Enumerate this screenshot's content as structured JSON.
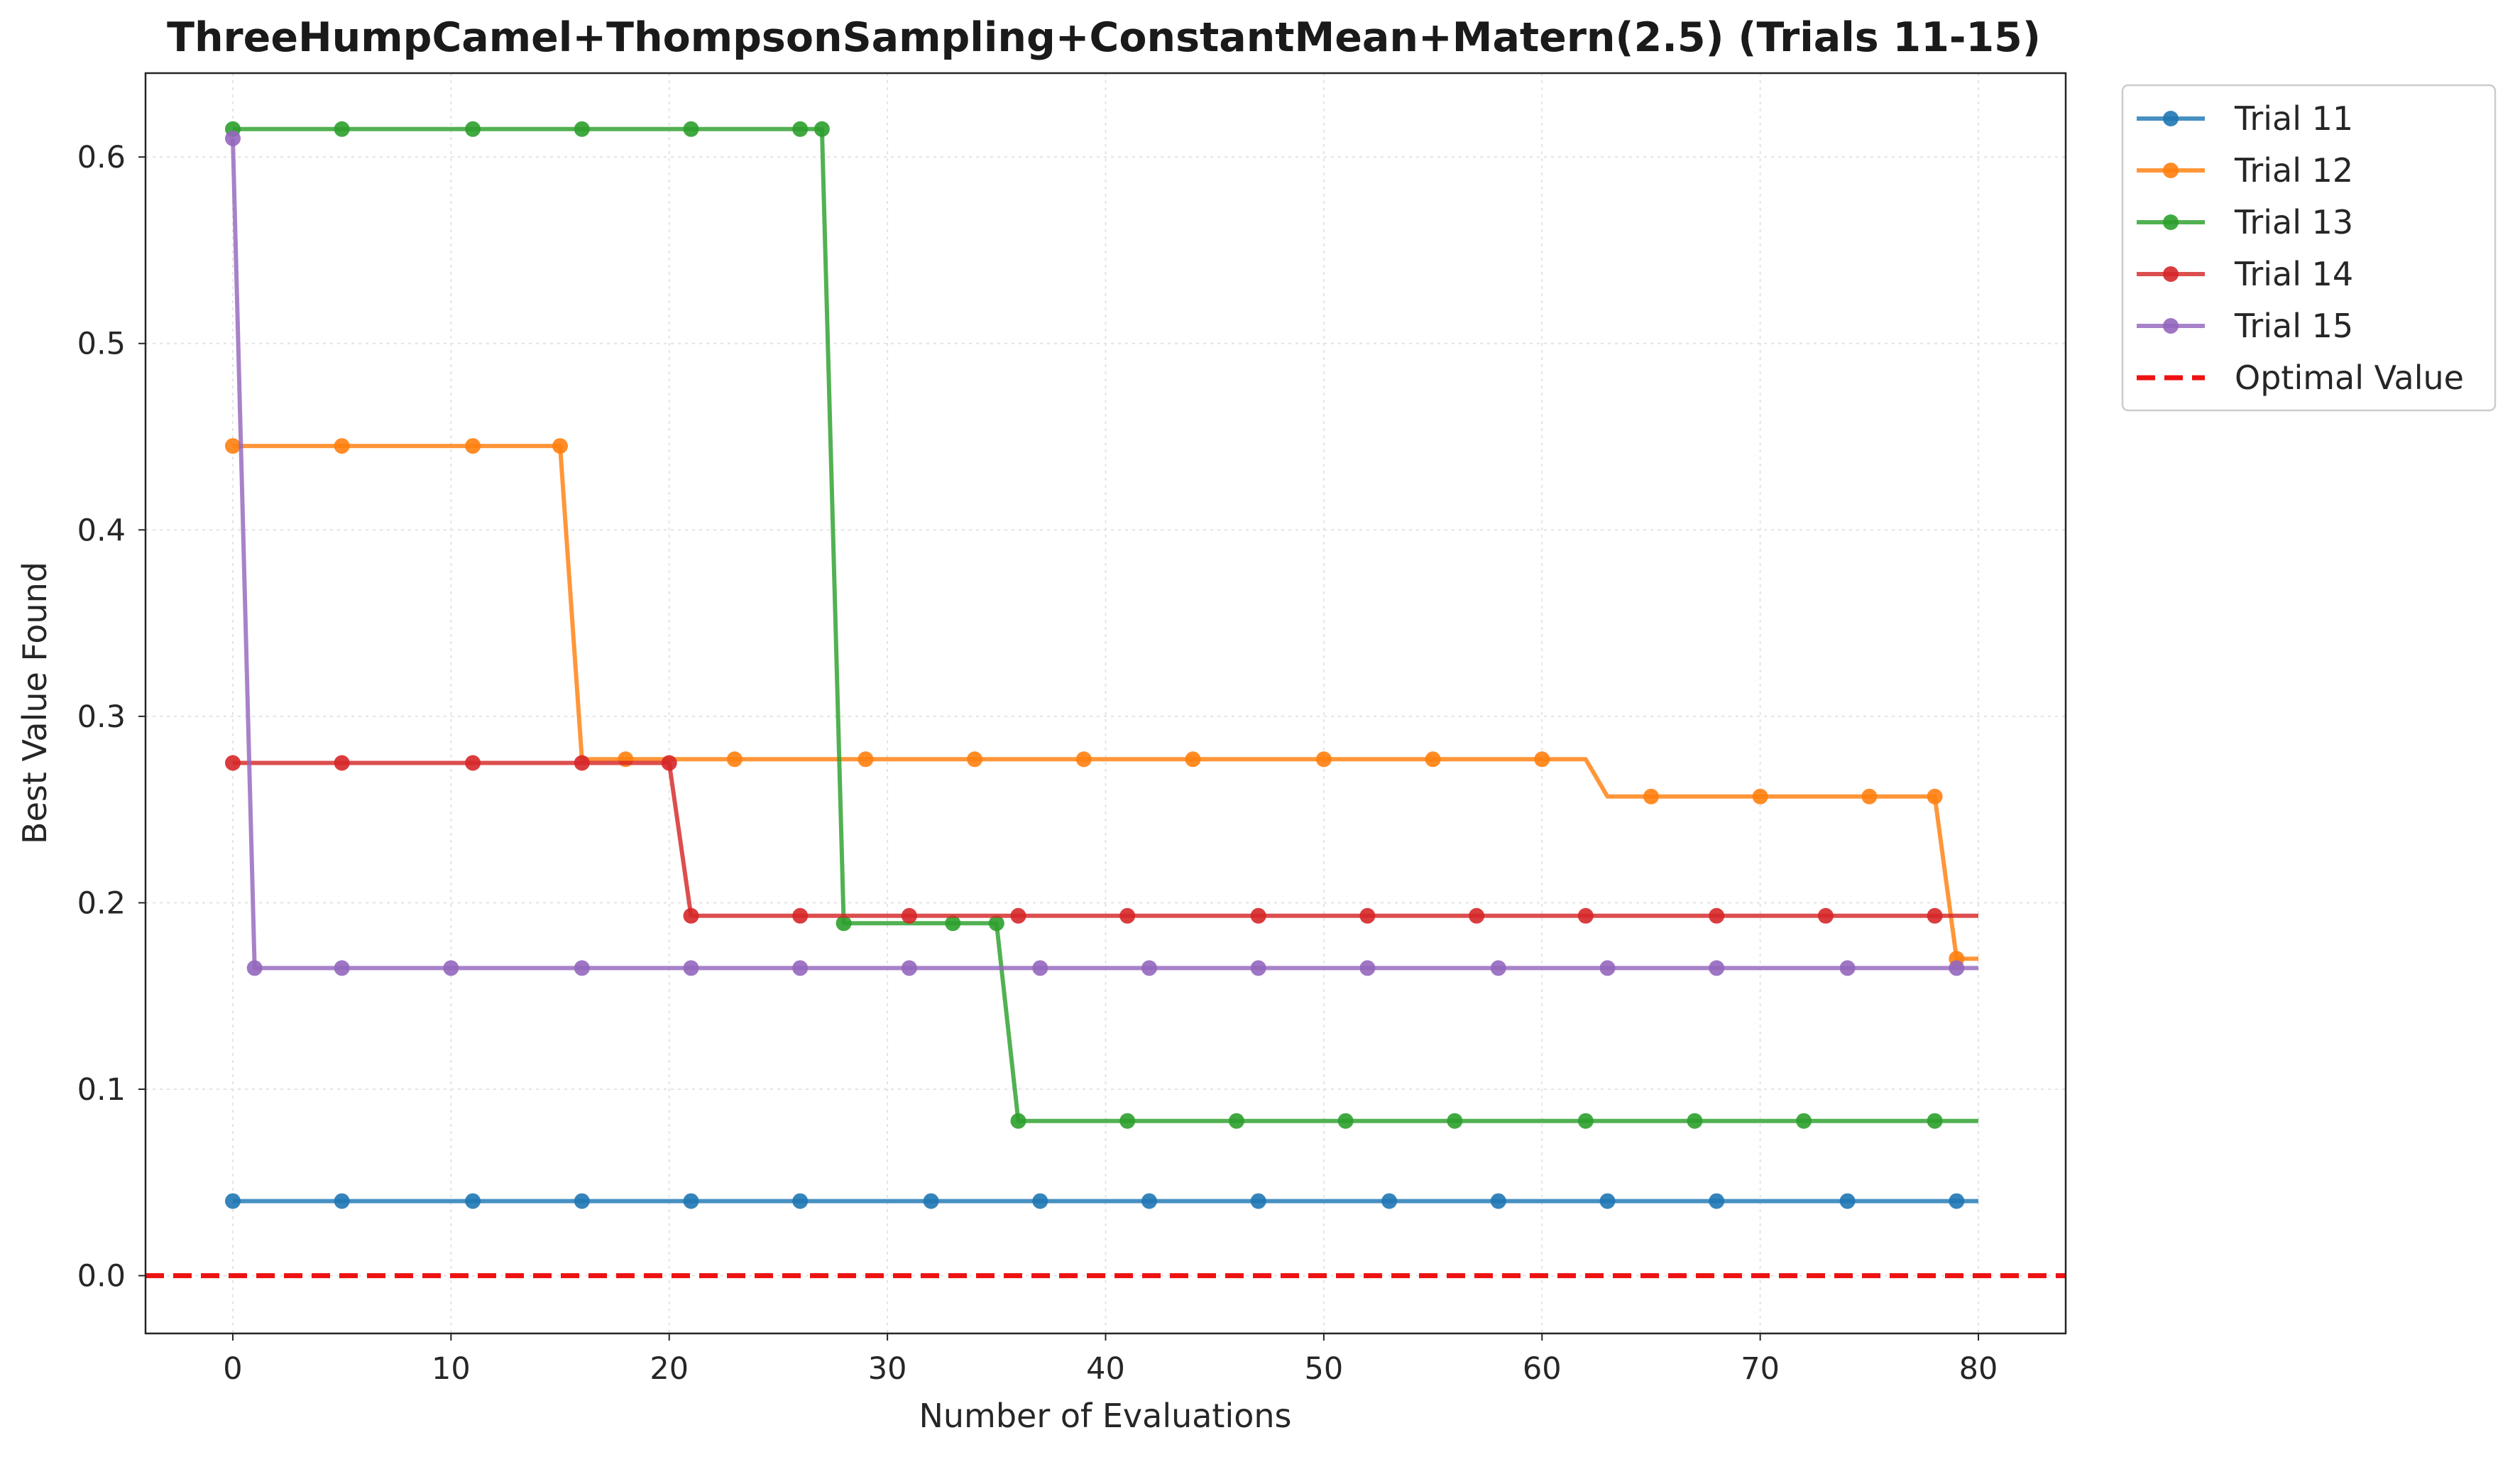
{
  "chart_data": {
    "type": "line",
    "title": "ThreeHumpCamel+ThompsonSampling+ConstantMean+Matern(2.5) (Trials 11-15)",
    "xlabel": "Number of Evaluations",
    "ylabel": "Best Value Found",
    "xlim": [
      -4,
      84
    ],
    "ylim": [
      -0.031,
      0.645
    ],
    "xticks": [
      0,
      10,
      20,
      30,
      40,
      50,
      60,
      70,
      80
    ],
    "yticks": [
      0.0,
      0.1,
      0.2,
      0.3,
      0.4,
      0.5,
      0.6
    ],
    "xtick_labels": [
      "0",
      "10",
      "20",
      "30",
      "40",
      "50",
      "60",
      "70",
      "80"
    ],
    "ytick_labels": [
      "0.0",
      "0.1",
      "0.2",
      "0.3",
      "0.4",
      "0.5",
      "0.6"
    ],
    "grid": true,
    "legend_position": "outside-top-right",
    "series": [
      {
        "name": "Trial 11",
        "color": "#1f77b4",
        "line": [
          [
            0,
            0.04
          ],
          [
            80,
            0.04
          ]
        ],
        "markers": [
          [
            0,
            0.04
          ],
          [
            5,
            0.04
          ],
          [
            11,
            0.04
          ],
          [
            16,
            0.04
          ],
          [
            21,
            0.04
          ],
          [
            26,
            0.04
          ],
          [
            32,
            0.04
          ],
          [
            37,
            0.04
          ],
          [
            42,
            0.04
          ],
          [
            47,
            0.04
          ],
          [
            53,
            0.04
          ],
          [
            58,
            0.04
          ],
          [
            63,
            0.04
          ],
          [
            68,
            0.04
          ],
          [
            74,
            0.04
          ],
          [
            79,
            0.04
          ]
        ]
      },
      {
        "name": "Trial 12",
        "color": "#ff7f0e",
        "line": [
          [
            0,
            0.445
          ],
          [
            15,
            0.445
          ],
          [
            16,
            0.277
          ],
          [
            62,
            0.277
          ],
          [
            63,
            0.257
          ],
          [
            78,
            0.257
          ],
          [
            79,
            0.17
          ],
          [
            80,
            0.17
          ]
        ],
        "markers": [
          [
            0,
            0.445
          ],
          [
            5,
            0.445
          ],
          [
            11,
            0.445
          ],
          [
            15,
            0.445
          ],
          [
            18,
            0.277
          ],
          [
            23,
            0.277
          ],
          [
            29,
            0.277
          ],
          [
            34,
            0.277
          ],
          [
            39,
            0.277
          ],
          [
            44,
            0.277
          ],
          [
            50,
            0.277
          ],
          [
            55,
            0.277
          ],
          [
            60,
            0.277
          ],
          [
            65,
            0.257
          ],
          [
            70,
            0.257
          ],
          [
            75,
            0.257
          ],
          [
            78,
            0.257
          ],
          [
            79,
            0.17
          ]
        ]
      },
      {
        "name": "Trial 13",
        "color": "#2ca02c",
        "line": [
          [
            0,
            0.615
          ],
          [
            27,
            0.615
          ],
          [
            28,
            0.189
          ],
          [
            35,
            0.189
          ],
          [
            36,
            0.083
          ],
          [
            80,
            0.083
          ]
        ],
        "markers": [
          [
            0,
            0.615
          ],
          [
            5,
            0.615
          ],
          [
            11,
            0.615
          ],
          [
            16,
            0.615
          ],
          [
            21,
            0.615
          ],
          [
            26,
            0.615
          ],
          [
            27,
            0.615
          ],
          [
            28,
            0.189
          ],
          [
            33,
            0.189
          ],
          [
            35,
            0.189
          ],
          [
            36,
            0.083
          ],
          [
            41,
            0.083
          ],
          [
            46,
            0.083
          ],
          [
            51,
            0.083
          ],
          [
            56,
            0.083
          ],
          [
            62,
            0.083
          ],
          [
            67,
            0.083
          ],
          [
            72,
            0.083
          ],
          [
            78,
            0.083
          ]
        ]
      },
      {
        "name": "Trial 14",
        "color": "#d62728",
        "line": [
          [
            0,
            0.275
          ],
          [
            20,
            0.275
          ],
          [
            21,
            0.193
          ],
          [
            80,
            0.193
          ]
        ],
        "markers": [
          [
            0,
            0.275
          ],
          [
            5,
            0.275
          ],
          [
            11,
            0.275
          ],
          [
            16,
            0.275
          ],
          [
            20,
            0.275
          ],
          [
            21,
            0.193
          ],
          [
            26,
            0.193
          ],
          [
            31,
            0.193
          ],
          [
            36,
            0.193
          ],
          [
            41,
            0.193
          ],
          [
            47,
            0.193
          ],
          [
            52,
            0.193
          ],
          [
            57,
            0.193
          ],
          [
            62,
            0.193
          ],
          [
            68,
            0.193
          ],
          [
            73,
            0.193
          ],
          [
            78,
            0.193
          ]
        ]
      },
      {
        "name": "Trial 15",
        "color": "#9467bd",
        "line": [
          [
            0,
            0.61
          ],
          [
            1,
            0.165
          ],
          [
            80,
            0.165
          ]
        ],
        "markers": [
          [
            0,
            0.61
          ],
          [
            1,
            0.165
          ],
          [
            5,
            0.165
          ],
          [
            10,
            0.165
          ],
          [
            16,
            0.165
          ],
          [
            21,
            0.165
          ],
          [
            26,
            0.165
          ],
          [
            31,
            0.165
          ],
          [
            37,
            0.165
          ],
          [
            42,
            0.165
          ],
          [
            47,
            0.165
          ],
          [
            52,
            0.165
          ],
          [
            58,
            0.165
          ],
          [
            63,
            0.165
          ],
          [
            68,
            0.165
          ],
          [
            74,
            0.165
          ],
          [
            79,
            0.165
          ]
        ]
      }
    ],
    "reference_line": {
      "name": "Optimal Value",
      "value": 0.0,
      "color": "#ee1111",
      "style": "dashed"
    }
  }
}
